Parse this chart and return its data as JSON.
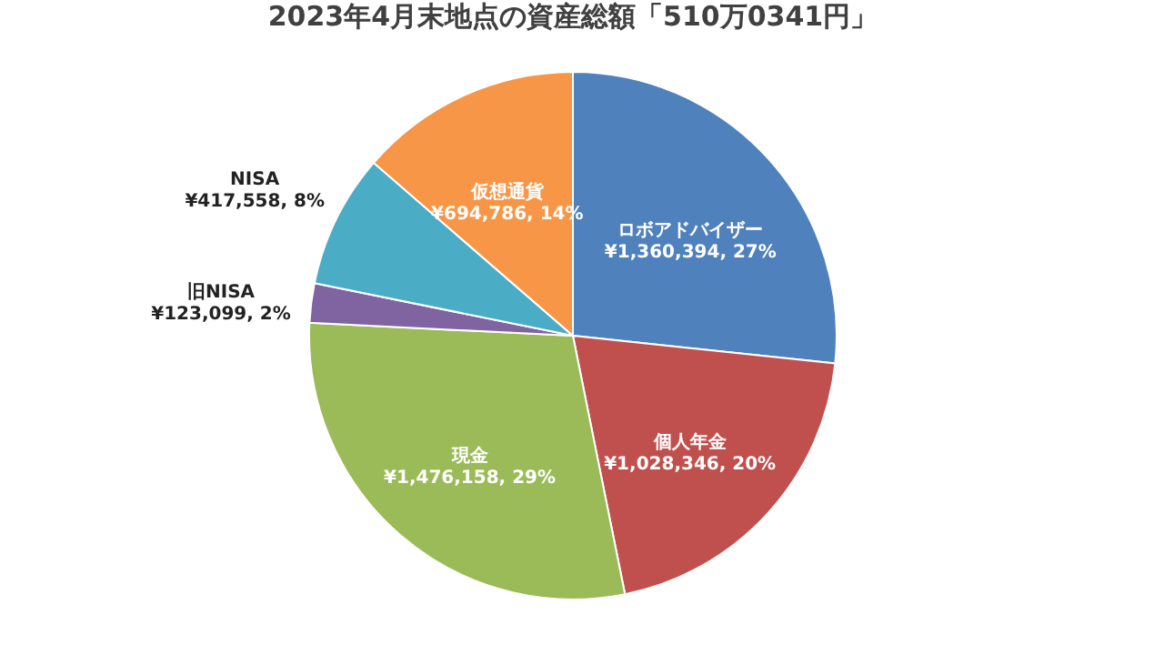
{
  "chart_data": {
    "type": "pie",
    "title": "2023年4月末地点の資産総額「510万0341円」",
    "categories": [
      "ロボアドバイザー",
      "個人年金",
      "現金",
      "旧NISA",
      "NISA",
      "仮想通貨"
    ],
    "values": [
      1360394,
      1028346,
      1476158,
      123099,
      417558,
      694786
    ],
    "colors": [
      "#4f81bd",
      "#c0504d",
      "#9bbb59",
      "#8064a2",
      "#4bacc6",
      "#f79646"
    ],
    "value_labels": [
      "¥1,360,394, 27%",
      "¥1,028,346, 20%",
      "¥1,476,158, 29%",
      "¥123,099, 2%",
      "¥417,558, 8%",
      "¥694,786, 14%"
    ],
    "legend": false
  }
}
